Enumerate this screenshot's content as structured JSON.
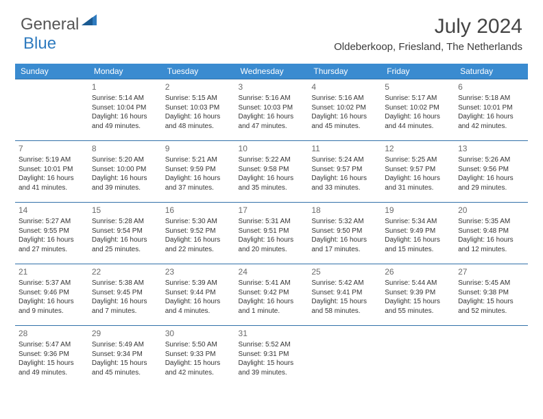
{
  "logo": {
    "text1": "General",
    "text2": "Blue"
  },
  "title": "July 2024",
  "location": "Oldeberkoop, Friesland, The Netherlands",
  "colors": {
    "header_bg": "#3a8bd0",
    "header_text": "#ffffff",
    "rule": "#2f6fa8",
    "daynum": "#6a6a6a",
    "body_text": "#333333",
    "logo_gray": "#555555",
    "logo_blue": "#2f7bbf"
  },
  "weekdays": [
    "Sunday",
    "Monday",
    "Tuesday",
    "Wednesday",
    "Thursday",
    "Friday",
    "Saturday"
  ],
  "weeks": [
    [
      null,
      {
        "n": "1",
        "sr": "5:14 AM",
        "ss": "10:04 PM",
        "dl": "16 hours and 49 minutes."
      },
      {
        "n": "2",
        "sr": "5:15 AM",
        "ss": "10:03 PM",
        "dl": "16 hours and 48 minutes."
      },
      {
        "n": "3",
        "sr": "5:16 AM",
        "ss": "10:03 PM",
        "dl": "16 hours and 47 minutes."
      },
      {
        "n": "4",
        "sr": "5:16 AM",
        "ss": "10:02 PM",
        "dl": "16 hours and 45 minutes."
      },
      {
        "n": "5",
        "sr": "5:17 AM",
        "ss": "10:02 PM",
        "dl": "16 hours and 44 minutes."
      },
      {
        "n": "6",
        "sr": "5:18 AM",
        "ss": "10:01 PM",
        "dl": "16 hours and 42 minutes."
      }
    ],
    [
      {
        "n": "7",
        "sr": "5:19 AM",
        "ss": "10:01 PM",
        "dl": "16 hours and 41 minutes."
      },
      {
        "n": "8",
        "sr": "5:20 AM",
        "ss": "10:00 PM",
        "dl": "16 hours and 39 minutes."
      },
      {
        "n": "9",
        "sr": "5:21 AM",
        "ss": "9:59 PM",
        "dl": "16 hours and 37 minutes."
      },
      {
        "n": "10",
        "sr": "5:22 AM",
        "ss": "9:58 PM",
        "dl": "16 hours and 35 minutes."
      },
      {
        "n": "11",
        "sr": "5:24 AM",
        "ss": "9:57 PM",
        "dl": "16 hours and 33 minutes."
      },
      {
        "n": "12",
        "sr": "5:25 AM",
        "ss": "9:57 PM",
        "dl": "16 hours and 31 minutes."
      },
      {
        "n": "13",
        "sr": "5:26 AM",
        "ss": "9:56 PM",
        "dl": "16 hours and 29 minutes."
      }
    ],
    [
      {
        "n": "14",
        "sr": "5:27 AM",
        "ss": "9:55 PM",
        "dl": "16 hours and 27 minutes."
      },
      {
        "n": "15",
        "sr": "5:28 AM",
        "ss": "9:54 PM",
        "dl": "16 hours and 25 minutes."
      },
      {
        "n": "16",
        "sr": "5:30 AM",
        "ss": "9:52 PM",
        "dl": "16 hours and 22 minutes."
      },
      {
        "n": "17",
        "sr": "5:31 AM",
        "ss": "9:51 PM",
        "dl": "16 hours and 20 minutes."
      },
      {
        "n": "18",
        "sr": "5:32 AM",
        "ss": "9:50 PM",
        "dl": "16 hours and 17 minutes."
      },
      {
        "n": "19",
        "sr": "5:34 AM",
        "ss": "9:49 PM",
        "dl": "16 hours and 15 minutes."
      },
      {
        "n": "20",
        "sr": "5:35 AM",
        "ss": "9:48 PM",
        "dl": "16 hours and 12 minutes."
      }
    ],
    [
      {
        "n": "21",
        "sr": "5:37 AM",
        "ss": "9:46 PM",
        "dl": "16 hours and 9 minutes."
      },
      {
        "n": "22",
        "sr": "5:38 AM",
        "ss": "9:45 PM",
        "dl": "16 hours and 7 minutes."
      },
      {
        "n": "23",
        "sr": "5:39 AM",
        "ss": "9:44 PM",
        "dl": "16 hours and 4 minutes."
      },
      {
        "n": "24",
        "sr": "5:41 AM",
        "ss": "9:42 PM",
        "dl": "16 hours and 1 minute."
      },
      {
        "n": "25",
        "sr": "5:42 AM",
        "ss": "9:41 PM",
        "dl": "15 hours and 58 minutes."
      },
      {
        "n": "26",
        "sr": "5:44 AM",
        "ss": "9:39 PM",
        "dl": "15 hours and 55 minutes."
      },
      {
        "n": "27",
        "sr": "5:45 AM",
        "ss": "9:38 PM",
        "dl": "15 hours and 52 minutes."
      }
    ],
    [
      {
        "n": "28",
        "sr": "5:47 AM",
        "ss": "9:36 PM",
        "dl": "15 hours and 49 minutes."
      },
      {
        "n": "29",
        "sr": "5:49 AM",
        "ss": "9:34 PM",
        "dl": "15 hours and 45 minutes."
      },
      {
        "n": "30",
        "sr": "5:50 AM",
        "ss": "9:33 PM",
        "dl": "15 hours and 42 minutes."
      },
      {
        "n": "31",
        "sr": "5:52 AM",
        "ss": "9:31 PM",
        "dl": "15 hours and 39 minutes."
      },
      null,
      null,
      null
    ]
  ],
  "labels": {
    "sunrise": "Sunrise: ",
    "sunset": "Sunset: ",
    "daylight": "Daylight: "
  }
}
